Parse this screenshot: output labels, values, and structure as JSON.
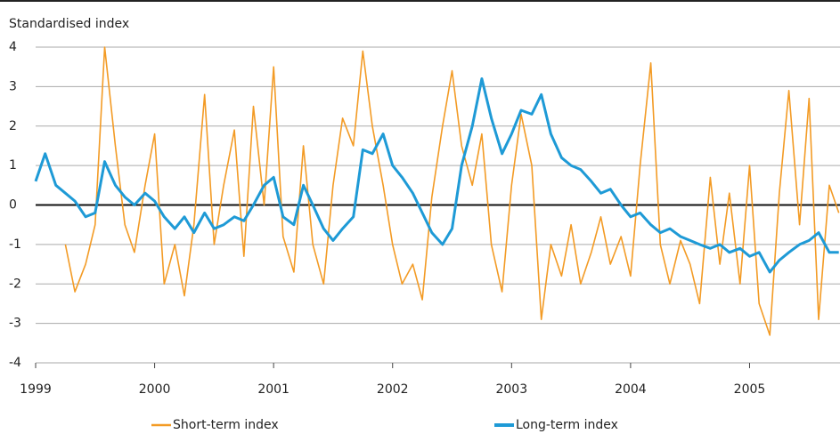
{
  "chart_data": {
    "type": "line",
    "title": "Standardised index",
    "x": [
      1999.0,
      1999.08,
      1999.17,
      1999.25,
      1999.33,
      1999.42,
      1999.5,
      1999.58,
      1999.67,
      1999.75,
      1999.83,
      1999.92,
      2000.0,
      2000.08,
      2000.17,
      2000.25,
      2000.33,
      2000.42,
      2000.5,
      2000.58,
      2000.67,
      2000.75,
      2000.83,
      2000.92,
      2001.0,
      2001.08,
      2001.17,
      2001.25,
      2001.33,
      2001.42,
      2001.5,
      2001.58,
      2001.67,
      2001.75,
      2001.83,
      2001.92,
      2002.0,
      2002.08,
      2002.17,
      2002.25,
      2002.33,
      2002.42,
      2002.5,
      2002.58,
      2002.67,
      2002.75,
      2002.83,
      2002.92,
      2003.0,
      2003.08,
      2003.17,
      2003.25,
      2003.33,
      2003.42,
      2003.5,
      2003.58,
      2003.67,
      2003.75,
      2003.83,
      2003.92,
      2004.0,
      2004.08,
      2004.17,
      2004.25,
      2004.33,
      2004.42,
      2004.5,
      2004.58,
      2004.67,
      2004.75,
      2004.83,
      2004.92,
      2005.0,
      2005.08,
      2005.17,
      2005.25,
      2005.33,
      2005.42,
      2005.5,
      2005.58,
      2005.67,
      2005.75
    ],
    "series": [
      {
        "name": "Short-term index",
        "color": "#f39b25",
        "width": 1.6,
        "values": [
          null,
          null,
          null,
          -1.0,
          -2.2,
          -1.5,
          -0.5,
          4.0,
          1.5,
          -0.5,
          -1.2,
          0.5,
          1.8,
          -2.0,
          -1.0,
          -2.3,
          -0.5,
          2.8,
          -1.0,
          0.5,
          1.9,
          -1.3,
          2.5,
          0.0,
          3.5,
          -0.8,
          -1.7,
          1.5,
          -1.0,
          -2.0,
          0.5,
          2.2,
          1.5,
          3.9,
          2.0,
          0.5,
          -1.0,
          -2.0,
          -1.5,
          -2.4,
          0.2,
          2.0,
          3.4,
          1.5,
          0.5,
          1.8,
          -1.0,
          -2.2,
          0.5,
          2.3,
          1.0,
          -2.9,
          -1.0,
          -1.8,
          -0.5,
          -2.0,
          -1.2,
          -0.3,
          -1.5,
          -0.8,
          -1.8,
          1.0,
          3.6,
          -1.0,
          -2.0,
          -0.9,
          -1.5,
          -2.5,
          0.7,
          -1.5,
          0.3,
          -2.0,
          1.0,
          -2.5,
          -3.3,
          0.3,
          2.9,
          -0.5,
          2.7,
          -2.9,
          0.5,
          -0.2
        ]
      },
      {
        "name": "Long-term index",
        "color": "#1e9ad6",
        "width": 3,
        "values": [
          0.6,
          1.3,
          0.5,
          0.3,
          0.1,
          -0.3,
          -0.2,
          1.1,
          0.5,
          0.2,
          0.0,
          0.3,
          0.1,
          -0.3,
          -0.6,
          -0.3,
          -0.7,
          -0.2,
          -0.6,
          -0.5,
          -0.3,
          -0.4,
          0.0,
          0.5,
          0.7,
          -0.3,
          -0.5,
          0.5,
          0.0,
          -0.6,
          -0.9,
          -0.6,
          -0.3,
          1.4,
          1.3,
          1.8,
          1.0,
          0.7,
          0.3,
          -0.2,
          -0.7,
          -1.0,
          -0.6,
          1.0,
          2.0,
          3.2,
          2.2,
          1.3,
          1.8,
          2.4,
          2.3,
          2.8,
          1.8,
          1.2,
          1.0,
          0.9,
          0.6,
          0.3,
          0.4,
          0.0,
          -0.3,
          -0.2,
          -0.5,
          -0.7,
          -0.6,
          -0.8,
          -0.9,
          -1.0,
          -1.1,
          -1.0,
          -1.2,
          -1.1,
          -1.3,
          -1.2,
          -1.7,
          -1.4,
          -1.2,
          -1.0,
          -0.9,
          -0.7,
          -1.2,
          -1.2
        ]
      }
    ],
    "xlim": [
      1999,
      2005.76
    ],
    "xticks": [
      1999,
      2000,
      2001,
      2002,
      2003,
      2004,
      2005
    ],
    "ylim": [
      -4,
      4
    ],
    "yticks": [
      -4,
      -3,
      -2,
      -1,
      0,
      1,
      2,
      3,
      4
    ],
    "grid": true
  }
}
